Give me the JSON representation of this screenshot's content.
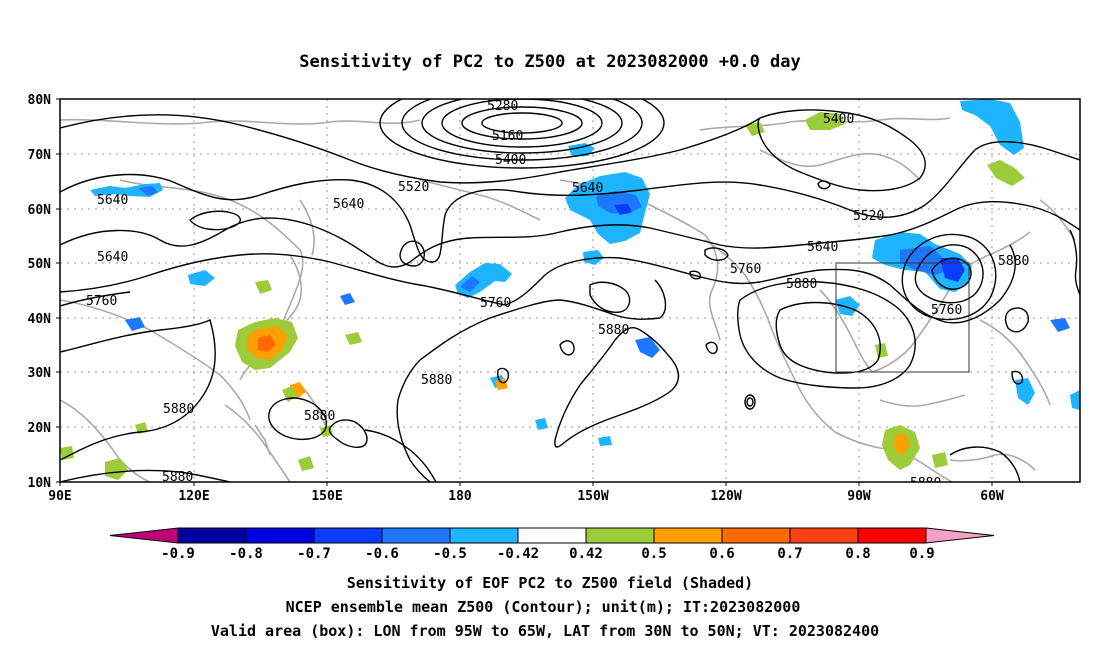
{
  "title": "Sensitivity of PC2 to Z500 at 2023082000 +0.0 day",
  "map": {
    "lat_labels": [
      "80N",
      "70N",
      "60N",
      "50N",
      "40N",
      "30N",
      "20N",
      "10N"
    ],
    "lon_labels": [
      "90E",
      "120E",
      "150E",
      "180",
      "150W",
      "120W",
      "90W",
      "60W"
    ],
    "valid_box": {
      "lon": [
        "95W",
        "65W"
      ],
      "lat": [
        "30N",
        "50N"
      ]
    },
    "contour_labels": [
      "5280",
      "5160",
      "5400",
      "5400",
      "5520",
      "5520",
      "5640",
      "5640",
      "5640",
      "5640",
      "5640",
      "5760",
      "5760",
      "5760",
      "5760",
      "5880",
      "5880",
      "5880",
      "5880",
      "5880",
      "5880",
      "5880"
    ],
    "colors": {
      "contour": "#000000",
      "coastline": "#aaaaaa",
      "grid": "#999999"
    }
  },
  "colorbar": {
    "labels": [
      "-0.9",
      "-0.8",
      "-0.7",
      "-0.6",
      "-0.5",
      "-0.42",
      "0.42",
      "0.5",
      "0.6",
      "0.7",
      "0.8",
      "0.9"
    ],
    "low_extend_color": "#c0007a",
    "high_extend_color": "#f5a0c8",
    "colors": [
      "#0000a0",
      "#0000e0",
      "#0a3cff",
      "#1e78ff",
      "#1eb4ff",
      "#ffffff",
      "#9ccc3a",
      "#ffa000",
      "#ff6a00",
      "#ff4010",
      "#ff0000"
    ]
  },
  "caption": {
    "line1": "Sensitivity of EOF PC2 to Z500 field (Shaded)",
    "line2": "NCEP ensemble mean Z500 (Contour); unit(m); IT:2023082000",
    "line3": "Valid area (box): LON from 95W to 65W, LAT from 30N to 50N; VT: 2023082400"
  }
}
